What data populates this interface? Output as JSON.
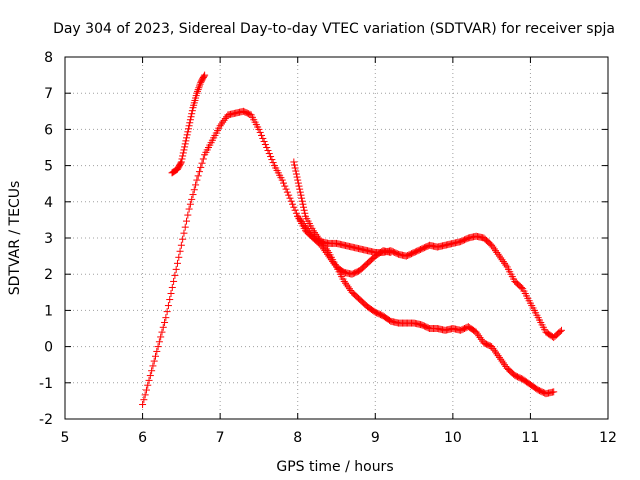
{
  "chart_data": {
    "type": "scatter",
    "title": "Day 304 of 2023, Sidereal Day-to-day VTEC variation (SDTVAR) for receiver spja",
    "xlabel": "GPS time / hours",
    "ylabel": "SDTVAR / TECUs",
    "xlim": [
      5,
      12
    ],
    "ylim": [
      -2,
      8
    ],
    "xticks": [
      "5",
      "6",
      "7",
      "8",
      "9",
      "10",
      "11",
      "12"
    ],
    "yticks": [
      "-2",
      "-1",
      "0",
      "1",
      "2",
      "3",
      "4",
      "5",
      "6",
      "7",
      "8"
    ],
    "grid": true,
    "marker": "+",
    "color": "#ff0000",
    "series": [
      {
        "name": "segment-1",
        "x": [
          6.38,
          6.45,
          6.5,
          6.55,
          6.6,
          6.65,
          6.7,
          6.75,
          6.8
        ],
        "y": [
          4.8,
          4.9,
          5.1,
          5.6,
          6.1,
          6.6,
          7.0,
          7.3,
          7.5
        ]
      },
      {
        "name": "segment-2",
        "x": [
          6.0,
          6.1,
          6.2,
          6.3,
          6.4,
          6.5,
          6.6,
          6.7,
          6.8,
          6.9,
          7.0,
          7.1,
          7.2,
          7.3,
          7.4,
          7.5,
          7.6,
          7.7,
          7.8,
          7.9,
          8.0,
          8.1,
          8.2,
          8.3,
          8.4,
          8.5,
          8.6,
          8.7,
          8.8,
          8.9,
          9.0,
          9.1,
          9.2,
          9.3,
          9.4,
          9.5,
          9.6,
          9.7,
          9.8,
          9.9,
          10.0,
          10.1,
          10.2,
          10.3,
          10.4,
          10.5,
          10.6,
          10.7,
          10.8,
          10.9,
          11.0,
          11.1,
          11.2,
          11.3,
          11.4
        ],
        "y": [
          -1.6,
          -0.8,
          0.0,
          0.8,
          1.8,
          2.8,
          3.8,
          4.6,
          5.3,
          5.7,
          6.1,
          6.4,
          6.45,
          6.5,
          6.4,
          6.0,
          5.5,
          5.0,
          4.6,
          4.1,
          3.6,
          3.2,
          3.0,
          2.9,
          2.85,
          2.85,
          2.8,
          2.75,
          2.7,
          2.65,
          2.6,
          2.6,
          2.65,
          2.55,
          2.5,
          2.6,
          2.7,
          2.8,
          2.75,
          2.8,
          2.85,
          2.9,
          3.0,
          3.05,
          3.0,
          2.8,
          2.5,
          2.2,
          1.8,
          1.6,
          1.2,
          0.8,
          0.4,
          0.25,
          0.45
        ]
      },
      {
        "name": "segment-3",
        "x": [
          7.95,
          8.0,
          8.05,
          8.1,
          8.2,
          8.3,
          8.4,
          8.5,
          8.6,
          8.7,
          8.8,
          8.9,
          9.0,
          9.1,
          9.2,
          9.3,
          9.4,
          9.5,
          9.6,
          9.7,
          9.8,
          9.9,
          10.0,
          10.1,
          10.2,
          10.3,
          10.4,
          10.5,
          10.6,
          10.7,
          10.8,
          10.9,
          11.0,
          11.1,
          11.2,
          11.3
        ],
        "y": [
          5.1,
          4.6,
          4.1,
          3.6,
          3.2,
          2.9,
          2.6,
          2.2,
          1.8,
          1.5,
          1.3,
          1.1,
          0.95,
          0.85,
          0.7,
          0.65,
          0.65,
          0.65,
          0.6,
          0.5,
          0.5,
          0.45,
          0.5,
          0.45,
          0.55,
          0.4,
          0.1,
          0.0,
          -0.3,
          -0.6,
          -0.8,
          -0.9,
          -1.05,
          -1.2,
          -1.3,
          -1.25
        ]
      },
      {
        "name": "segment-4",
        "x": [
          8.0,
          8.1,
          8.2,
          8.3,
          8.4,
          8.5,
          8.6,
          8.7,
          8.8,
          8.9,
          9.0,
          9.1,
          9.2
        ],
        "y": [
          3.6,
          3.3,
          3.0,
          2.8,
          2.5,
          2.2,
          2.05,
          2.0,
          2.1,
          2.3,
          2.5,
          2.65,
          2.6
        ]
      }
    ]
  }
}
